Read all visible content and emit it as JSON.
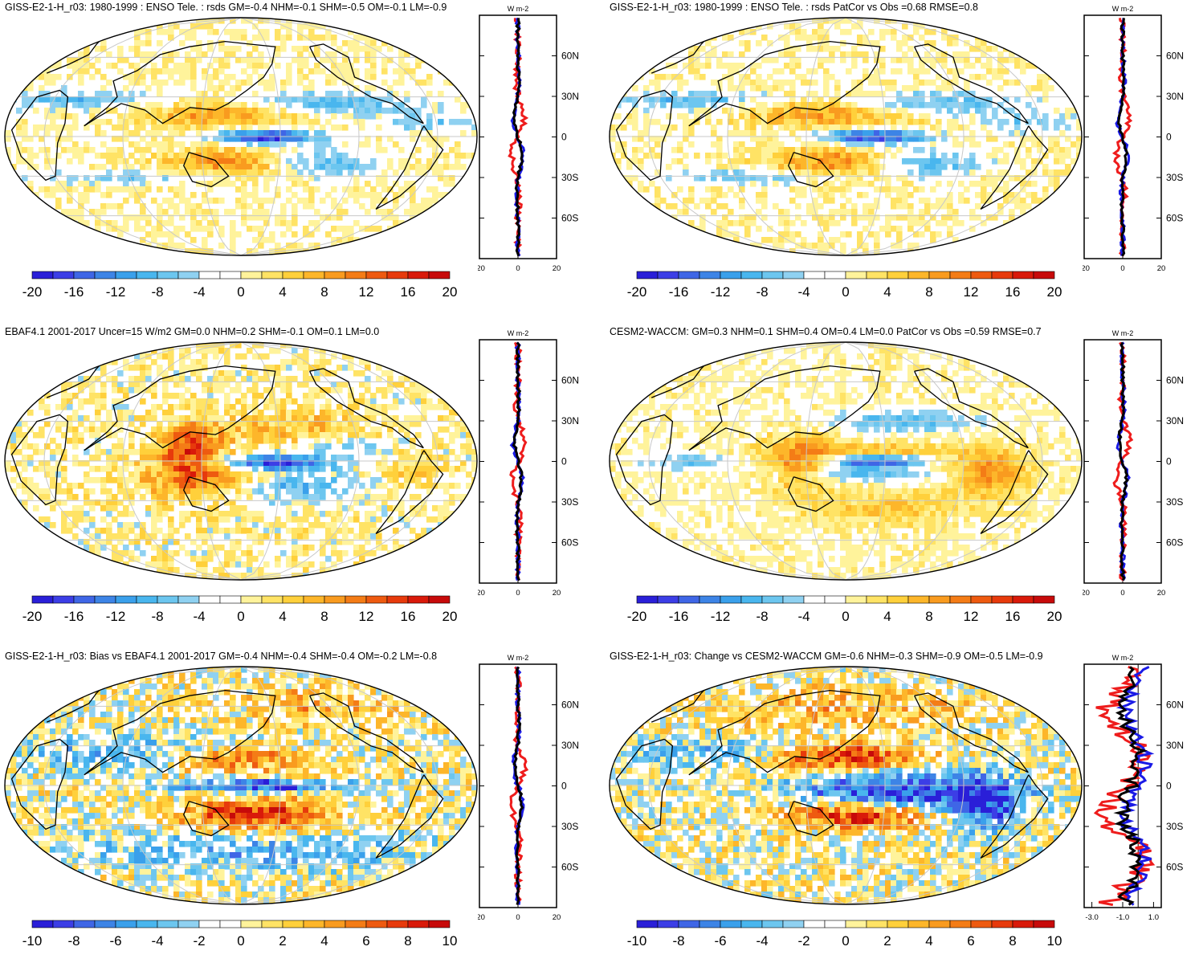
{
  "panels": [
    {
      "title": "GISS-E2-1-H_r03: 1980-1999 : ENSO Tele. : rsds GM=-0.4 NHM=-0.1 SHM=-0.5 OM=-0.1 LM=-0.9",
      "colorbar_labels": [
        "-20",
        "-16",
        "-12",
        "-8",
        "-4",
        "0",
        "4",
        "8",
        "12",
        "16",
        "20"
      ],
      "profile_xticks": [
        "-20",
        "0",
        "20"
      ],
      "profile_units": "W m-2",
      "lat_labels": [
        "60N",
        "30N",
        "0",
        "30S",
        "60S"
      ],
      "pattern": "model"
    },
    {
      "title": "GISS-E2-1-H_r03: 1980-1999 : ENSO Tele. : rsds PatCor vs Obs =0.68 RMSE=0.8",
      "colorbar_labels": [
        "-20",
        "-16",
        "-12",
        "-8",
        "-4",
        "0",
        "4",
        "8",
        "12",
        "16",
        "20"
      ],
      "profile_xticks": [
        "-20",
        "0",
        "20"
      ],
      "profile_units": "W m-2",
      "lat_labels": [
        "60N",
        "30N",
        "0",
        "30S",
        "60S"
      ],
      "pattern": "model"
    },
    {
      "title": "EBAF4.1 2001-2017 Uncer=15 W/m2 GM=0.0 NHM=0.2 SHM=-0.1 OM=0.1 LM=0.0",
      "colorbar_labels": [
        "-20",
        "-16",
        "-12",
        "-8",
        "-4",
        "0",
        "4",
        "8",
        "12",
        "16",
        "20"
      ],
      "profile_xticks": [
        "-20",
        "0",
        "20"
      ],
      "profile_units": "W m-2",
      "lat_labels": [
        "60N",
        "30N",
        "0",
        "30S",
        "60S"
      ],
      "pattern": "obs"
    },
    {
      "title": "CESM2-WACCM: GM=0.3 NHM=0.1 SHM=0.4 OM=0.4 LM=0.0 PatCor vs Obs =0.59 RMSE=0.7",
      "colorbar_labels": [
        "-20",
        "-16",
        "-12",
        "-8",
        "-4",
        "0",
        "4",
        "8",
        "12",
        "16",
        "20"
      ],
      "profile_xticks": [
        "-20",
        "0",
        "20"
      ],
      "profile_units": "W m-2",
      "lat_labels": [
        "60N",
        "30N",
        "0",
        "30S",
        "60S"
      ],
      "pattern": "cesm"
    },
    {
      "title": "GISS-E2-1-H_r03: Bias vs EBAF4.1 2001-2017 GM=-0.4 NHM=-0.4 SHM=-0.4 OM=-0.2 LM=-0.8",
      "colorbar_labels": [
        "-10",
        "-8",
        "-6",
        "-4",
        "-2",
        "0",
        "2",
        "4",
        "6",
        "8",
        "10"
      ],
      "profile_xticks": [
        "-20",
        "0",
        "20"
      ],
      "profile_units": "W m-2",
      "lat_labels": [
        "60N",
        "30N",
        "0",
        "30S",
        "60S"
      ],
      "pattern": "bias"
    },
    {
      "title": "GISS-E2-1-H_r03: Change vs CESM2-WACCM GM=-0.6 NHM=-0.3 SHM=-0.9 OM=-0.5 LM=-0.9",
      "colorbar_labels": [
        "-10",
        "-8",
        "-6",
        "-4",
        "-2",
        "0",
        "2",
        "4",
        "6",
        "8",
        "10"
      ],
      "profile_xticks": [
        "-3.0",
        "-1.0",
        "1.0"
      ],
      "profile_units": "W m-2",
      "lat_labels": [
        "60N",
        "30N",
        "0",
        "30S",
        "60S"
      ],
      "pattern": "change"
    }
  ],
  "colors": {
    "colorbar": [
      "#2a1fd8",
      "#3c3ee6",
      "#3f66e6",
      "#3d84e6",
      "#3aa0eb",
      "#49b6ee",
      "#6cc6ef",
      "#8fd1f1",
      "#ffffff",
      "#ffffff",
      "#fff39b",
      "#ffe365",
      "#ffd03b",
      "#fdb62a",
      "#f99b1f",
      "#f47c16",
      "#ee5a10",
      "#e73a0c",
      "#d91a0a",
      "#c70a0a"
    ],
    "profile_red": "#ee1c1c",
    "profile_blue": "#1a1ae6",
    "profile_black": "#000000",
    "grid": "#c8c8c8"
  },
  "chart_data": [
    {
      "type": "heatmap",
      "title": "GISS-E2-1-H_r03: 1980-1999 : ENSO Tele. : rsds GM=-0.4 NHM=-0.1 SHM=-0.5 OM=-0.1 LM=-0.9",
      "colorbar_range": [
        -20,
        20
      ],
      "lat_range": [
        -90,
        90
      ],
      "profile_xlim": [
        -20,
        20
      ]
    },
    {
      "type": "heatmap",
      "title": "GISS-E2-1-H_r03: 1980-1999 : ENSO Tele. : rsds PatCor vs Obs =0.68 RMSE=0.8",
      "colorbar_range": [
        -20,
        20
      ],
      "lat_range": [
        -90,
        90
      ],
      "profile_xlim": [
        -20,
        20
      ]
    },
    {
      "type": "heatmap",
      "title": "EBAF4.1 2001-2017 Uncer=15 W/m2 GM=0.0 NHM=0.2 SHM=-0.1 OM=0.1 LM=0.0",
      "colorbar_range": [
        -20,
        20
      ],
      "lat_range": [
        -90,
        90
      ],
      "profile_xlim": [
        -20,
        20
      ]
    },
    {
      "type": "heatmap",
      "title": "CESM2-WACCM: GM=0.3 NHM=0.1 SHM=0.4 OM=0.4 LM=0.0 PatCor vs Obs =0.59 RMSE=0.7",
      "colorbar_range": [
        -20,
        20
      ],
      "lat_range": [
        -90,
        90
      ],
      "profile_xlim": [
        -20,
        20
      ]
    },
    {
      "type": "heatmap",
      "title": "GISS-E2-1-H_r03: Bias vs EBAF4.1 2001-2017 GM=-0.4 NHM=-0.4 SHM=-0.4 OM=-0.2 LM=-0.8",
      "colorbar_range": [
        -10,
        10
      ],
      "lat_range": [
        -90,
        90
      ],
      "profile_xlim": [
        -20,
        20
      ]
    },
    {
      "type": "heatmap",
      "title": "GISS-E2-1-H_r03: Change vs CESM2-WACCM GM=-0.6 NHM=-0.3 SHM=-0.9 OM=-0.5 LM=-0.9",
      "colorbar_range": [
        -10,
        10
      ],
      "lat_range": [
        -90,
        90
      ],
      "profile_xlim": [
        -3.5,
        1.5
      ]
    }
  ]
}
